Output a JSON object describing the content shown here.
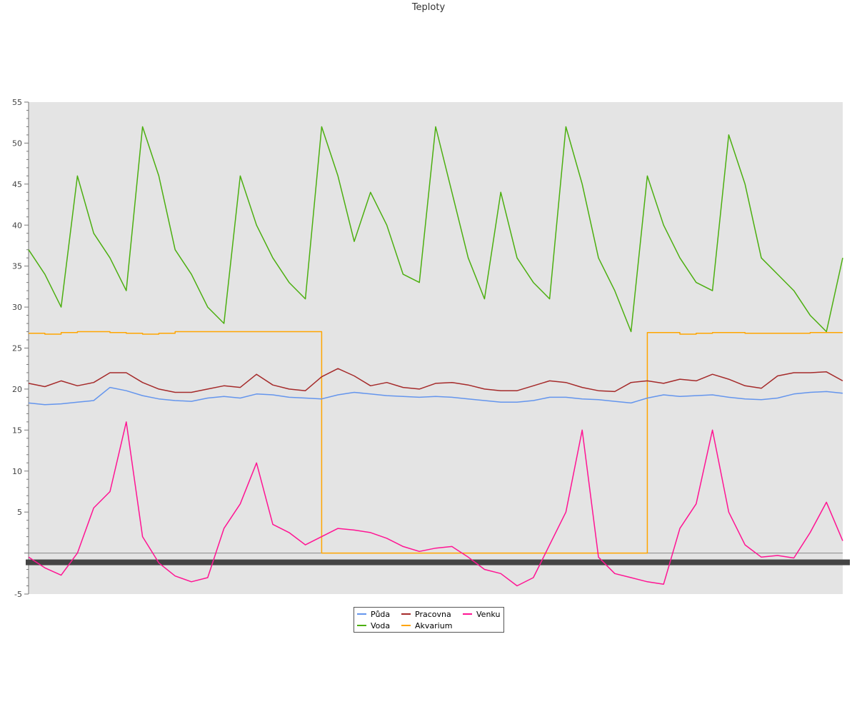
{
  "chart_data": {
    "type": "line",
    "title": "Teploty",
    "xlabel": "",
    "ylabel": "",
    "ylim": [
      -5,
      55
    ],
    "y_ticks": [
      -5,
      5,
      10,
      15,
      20,
      25,
      30,
      35,
      40,
      45,
      50,
      55
    ],
    "grid": false,
    "zero_line": true,
    "legend": "bottom-center",
    "plot_background": "#e4e4e4",
    "x": [
      0,
      2,
      4,
      6,
      8,
      10,
      12,
      14,
      16,
      18,
      20,
      22,
      24,
      26,
      28,
      30,
      32,
      34,
      36,
      38,
      40,
      42,
      44,
      46,
      48,
      50,
      52,
      54,
      56,
      58,
      60,
      62,
      64,
      66,
      68,
      70,
      72,
      74,
      76,
      78,
      80,
      82,
      84,
      86,
      88,
      90,
      92,
      94,
      96,
      98,
      100
    ],
    "series": [
      {
        "name": "Půda",
        "color": "#6495ed",
        "values": [
          18.3,
          18.1,
          18.2,
          18.4,
          18.6,
          20.2,
          19.8,
          19.2,
          18.8,
          18.6,
          18.5,
          18.9,
          19.1,
          18.9,
          19.4,
          19.3,
          19.0,
          18.9,
          18.8,
          19.3,
          19.6,
          19.4,
          19.2,
          19.1,
          19.0,
          19.1,
          19.0,
          18.8,
          18.6,
          18.4,
          18.4,
          18.6,
          19.0,
          19.0,
          18.8,
          18.7,
          18.5,
          18.3,
          18.9,
          19.3,
          19.1,
          19.2,
          19.3,
          19.0,
          18.8,
          18.7,
          18.9,
          19.4,
          19.6,
          19.7,
          19.5
        ]
      },
      {
        "name": "Voda",
        "color": "#4caf10",
        "values": [
          37,
          34,
          30,
          46,
          39,
          36,
          32,
          52,
          46,
          37,
          34,
          30,
          28,
          46,
          40,
          36,
          33,
          31,
          52,
          46,
          38,
          44,
          40,
          34,
          33,
          52,
          44,
          36,
          31,
          44,
          36,
          33,
          31,
          52,
          45,
          36,
          32,
          27,
          46,
          40,
          36,
          33,
          32,
          51,
          45,
          36,
          34,
          32,
          29,
          27,
          36
        ]
      },
      {
        "name": "Pracovna",
        "color": "#a52a2a",
        "values": [
          20.7,
          20.3,
          21.0,
          20.4,
          20.8,
          22.0,
          22.0,
          20.8,
          20.0,
          19.6,
          19.6,
          20.0,
          20.4,
          20.2,
          21.8,
          20.5,
          20.0,
          19.8,
          21.5,
          22.5,
          21.6,
          20.4,
          20.8,
          20.2,
          20.0,
          20.7,
          20.8,
          20.5,
          20.0,
          19.8,
          19.8,
          20.4,
          21.0,
          20.8,
          20.2,
          19.8,
          19.7,
          20.8,
          21.0,
          20.7,
          21.2,
          21.0,
          21.8,
          21.2,
          20.4,
          20.1,
          21.6,
          22.0,
          22.0,
          22.1,
          21.0
        ]
      },
      {
        "name": "Akvarium",
        "color": "#ffa500",
        "values": [
          26.8,
          26.7,
          26.9,
          27.0,
          27.0,
          26.9,
          26.8,
          26.7,
          26.8,
          27.0,
          27.0,
          27.0,
          27.0,
          27.0,
          27.0,
          27.0,
          27.0,
          27.0,
          0.0,
          0.0,
          0.0,
          0.0,
          0.0,
          0.0,
          0.0,
          0.0,
          0.0,
          0.0,
          0.0,
          0.0,
          0.0,
          0.0,
          0.0,
          0.0,
          0.0,
          0.0,
          0.0,
          0.0,
          26.9,
          26.9,
          26.7,
          26.8,
          26.9,
          26.9,
          26.8,
          26.8,
          26.8,
          26.8,
          26.9,
          26.9,
          26.9
        ]
      },
      {
        "name": "Venku",
        "color": "#ff1493",
        "values": [
          -0.5,
          -1.8,
          -2.7,
          0.0,
          5.5,
          7.5,
          16.0,
          2.0,
          -1.2,
          -2.8,
          -3.5,
          -3.0,
          3.0,
          6.0,
          11.0,
          3.5,
          2.5,
          1.0,
          2.0,
          3.0,
          2.8,
          2.5,
          1.8,
          0.8,
          0.2,
          0.6,
          0.8,
          -0.5,
          -2.0,
          -2.5,
          -4.0,
          -3.0,
          1.0,
          5.0,
          15.0,
          -0.5,
          -2.5,
          -3.0,
          -3.5,
          -3.8,
          3.0,
          6.0,
          15.0,
          5.0,
          1.0,
          -0.5,
          -0.3,
          -0.6,
          2.5,
          6.2,
          1.5
        ]
      }
    ]
  }
}
